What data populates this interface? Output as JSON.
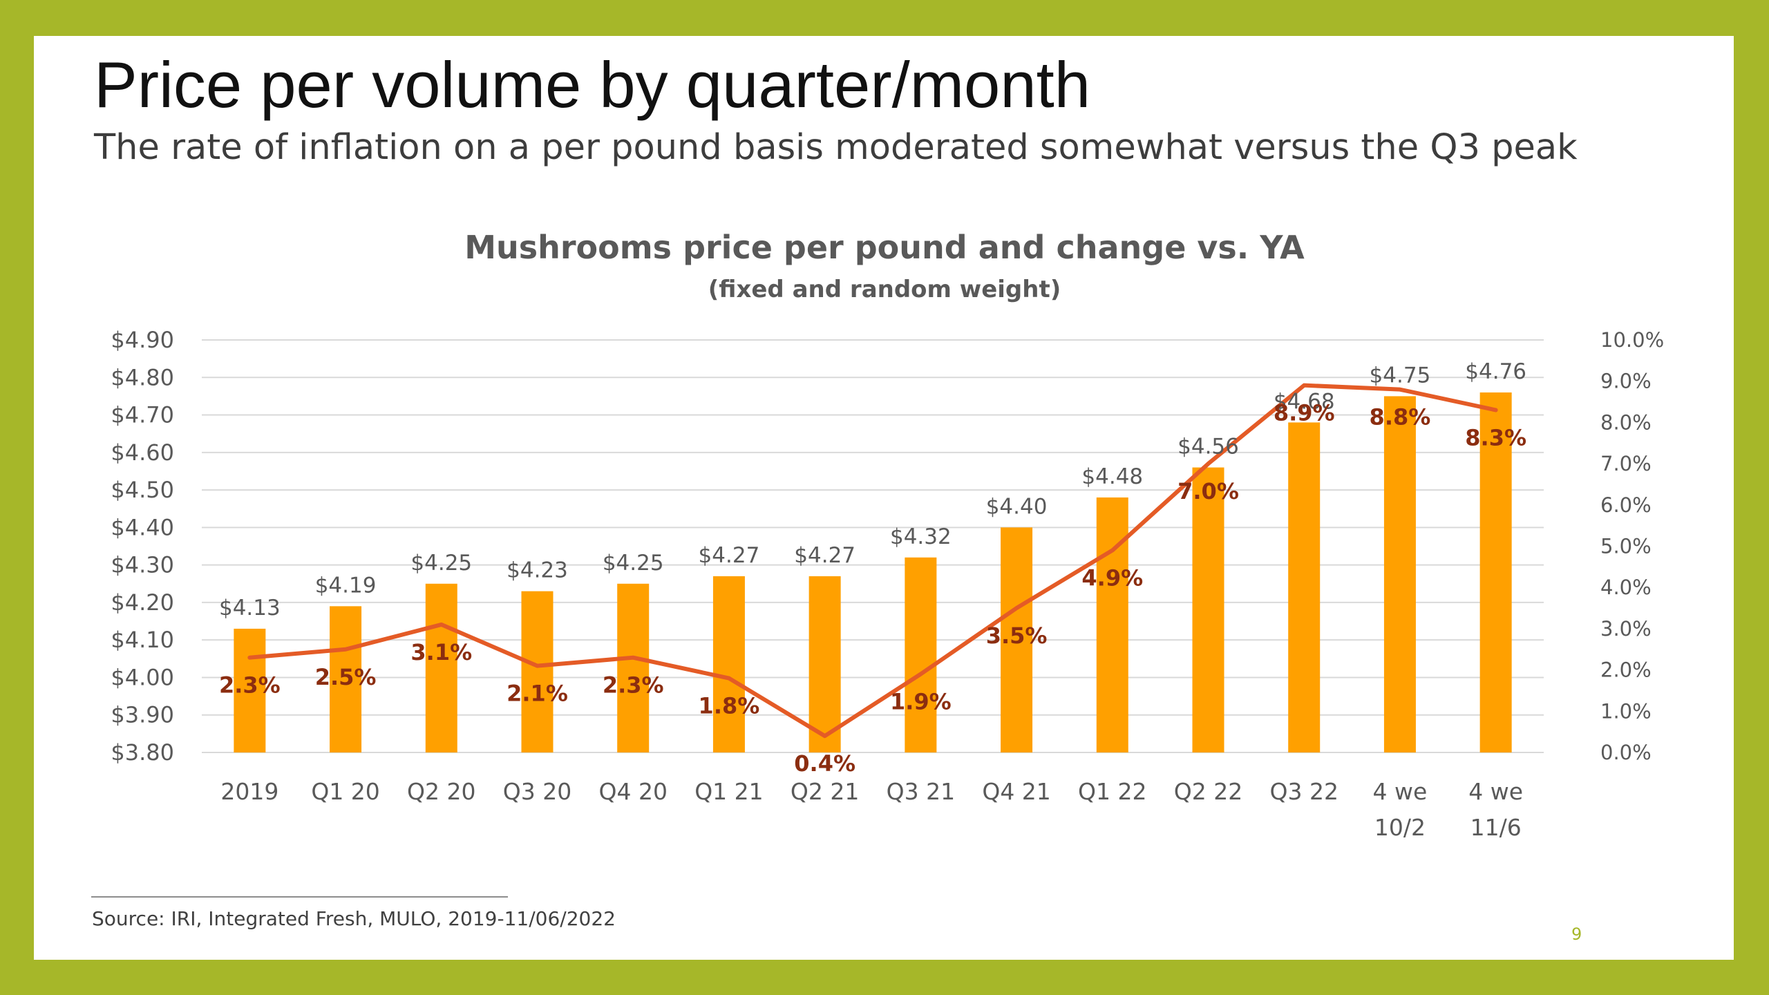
{
  "slide": {
    "title": "Price per volume by quarter/month",
    "subtitle": "The rate of inflation on a per pound basis moderated somewhat versus the Q3 peak",
    "source": "Source: IRI, Integrated Fresh, MULO,  2019-11/06/2022",
    "page_number": "9"
  },
  "chart_data": {
    "type": "bar",
    "title": "Mushrooms price per pound and change vs. YA",
    "subtitle": "(fixed and random weight)",
    "categories": [
      [
        "2019"
      ],
      [
        "Q1 20"
      ],
      [
        "Q2 20"
      ],
      [
        "Q3 20"
      ],
      [
        "Q4 20"
      ],
      [
        "Q1 21"
      ],
      [
        "Q2 21"
      ],
      [
        "Q3 21"
      ],
      [
        "Q4 21"
      ],
      [
        "Q1 22"
      ],
      [
        "Q2 22"
      ],
      [
        "Q3 22"
      ],
      [
        "4 we",
        "10/2"
      ],
      [
        "4 we",
        "11/6"
      ]
    ],
    "series": [
      {
        "type": "bar",
        "axis": "left",
        "color": "#ffa000",
        "values": [
          4.13,
          4.19,
          4.25,
          4.23,
          4.25,
          4.27,
          4.27,
          4.32,
          4.4,
          4.48,
          4.56,
          4.68,
          4.75,
          4.76
        ],
        "labels": [
          "$4.13",
          "$4.19",
          "$4.25",
          "$4.23",
          "$4.25",
          "$4.27",
          "$4.27",
          "$4.32",
          "$4.40",
          "$4.48",
          "$4.56",
          "$4.68",
          "$4.75",
          "$4.76"
        ]
      },
      {
        "type": "line",
        "axis": "right",
        "color": "#e45b26",
        "label_color": "#8b2d10",
        "values": [
          2.3,
          2.5,
          3.1,
          2.1,
          2.3,
          1.8,
          0.4,
          1.9,
          3.5,
          4.9,
          7.0,
          8.9,
          8.8,
          8.3
        ],
        "labels": [
          "2.3%",
          "2.5%",
          "3.1%",
          "2.1%",
          "2.3%",
          "1.8%",
          "0.4%",
          "1.9%",
          "3.5%",
          "4.9%",
          "7.0%",
          "8.9%",
          "8.8%",
          "8.3%"
        ]
      }
    ],
    "y_left": {
      "range": [
        3.8,
        4.9
      ],
      "ticks": [
        3.8,
        3.9,
        4.0,
        4.1,
        4.2,
        4.3,
        4.4,
        4.5,
        4.6,
        4.7,
        4.8,
        4.9
      ],
      "tick_labels": [
        "$3.80",
        "$3.90",
        "$4.00",
        "$4.10",
        "$4.20",
        "$4.30",
        "$4.40",
        "$4.50",
        "$4.60",
        "$4.70",
        "$4.80",
        "$4.90"
      ]
    },
    "y_right": {
      "range": [
        0,
        10
      ],
      "ticks": [
        0,
        1,
        2,
        3,
        4,
        5,
        6,
        7,
        8,
        9,
        10
      ],
      "tick_labels": [
        "0.0%",
        "1.0%",
        "2.0%",
        "3.0%",
        "4.0%",
        "5.0%",
        "6.0%",
        "7.0%",
        "8.0%",
        "9.0%",
        "10.0%"
      ]
    },
    "grid": true,
    "legend": "none",
    "colors": {
      "gridline": "#d9d9d9",
      "tick_text": "#595959",
      "title_text": "#595959"
    }
  }
}
